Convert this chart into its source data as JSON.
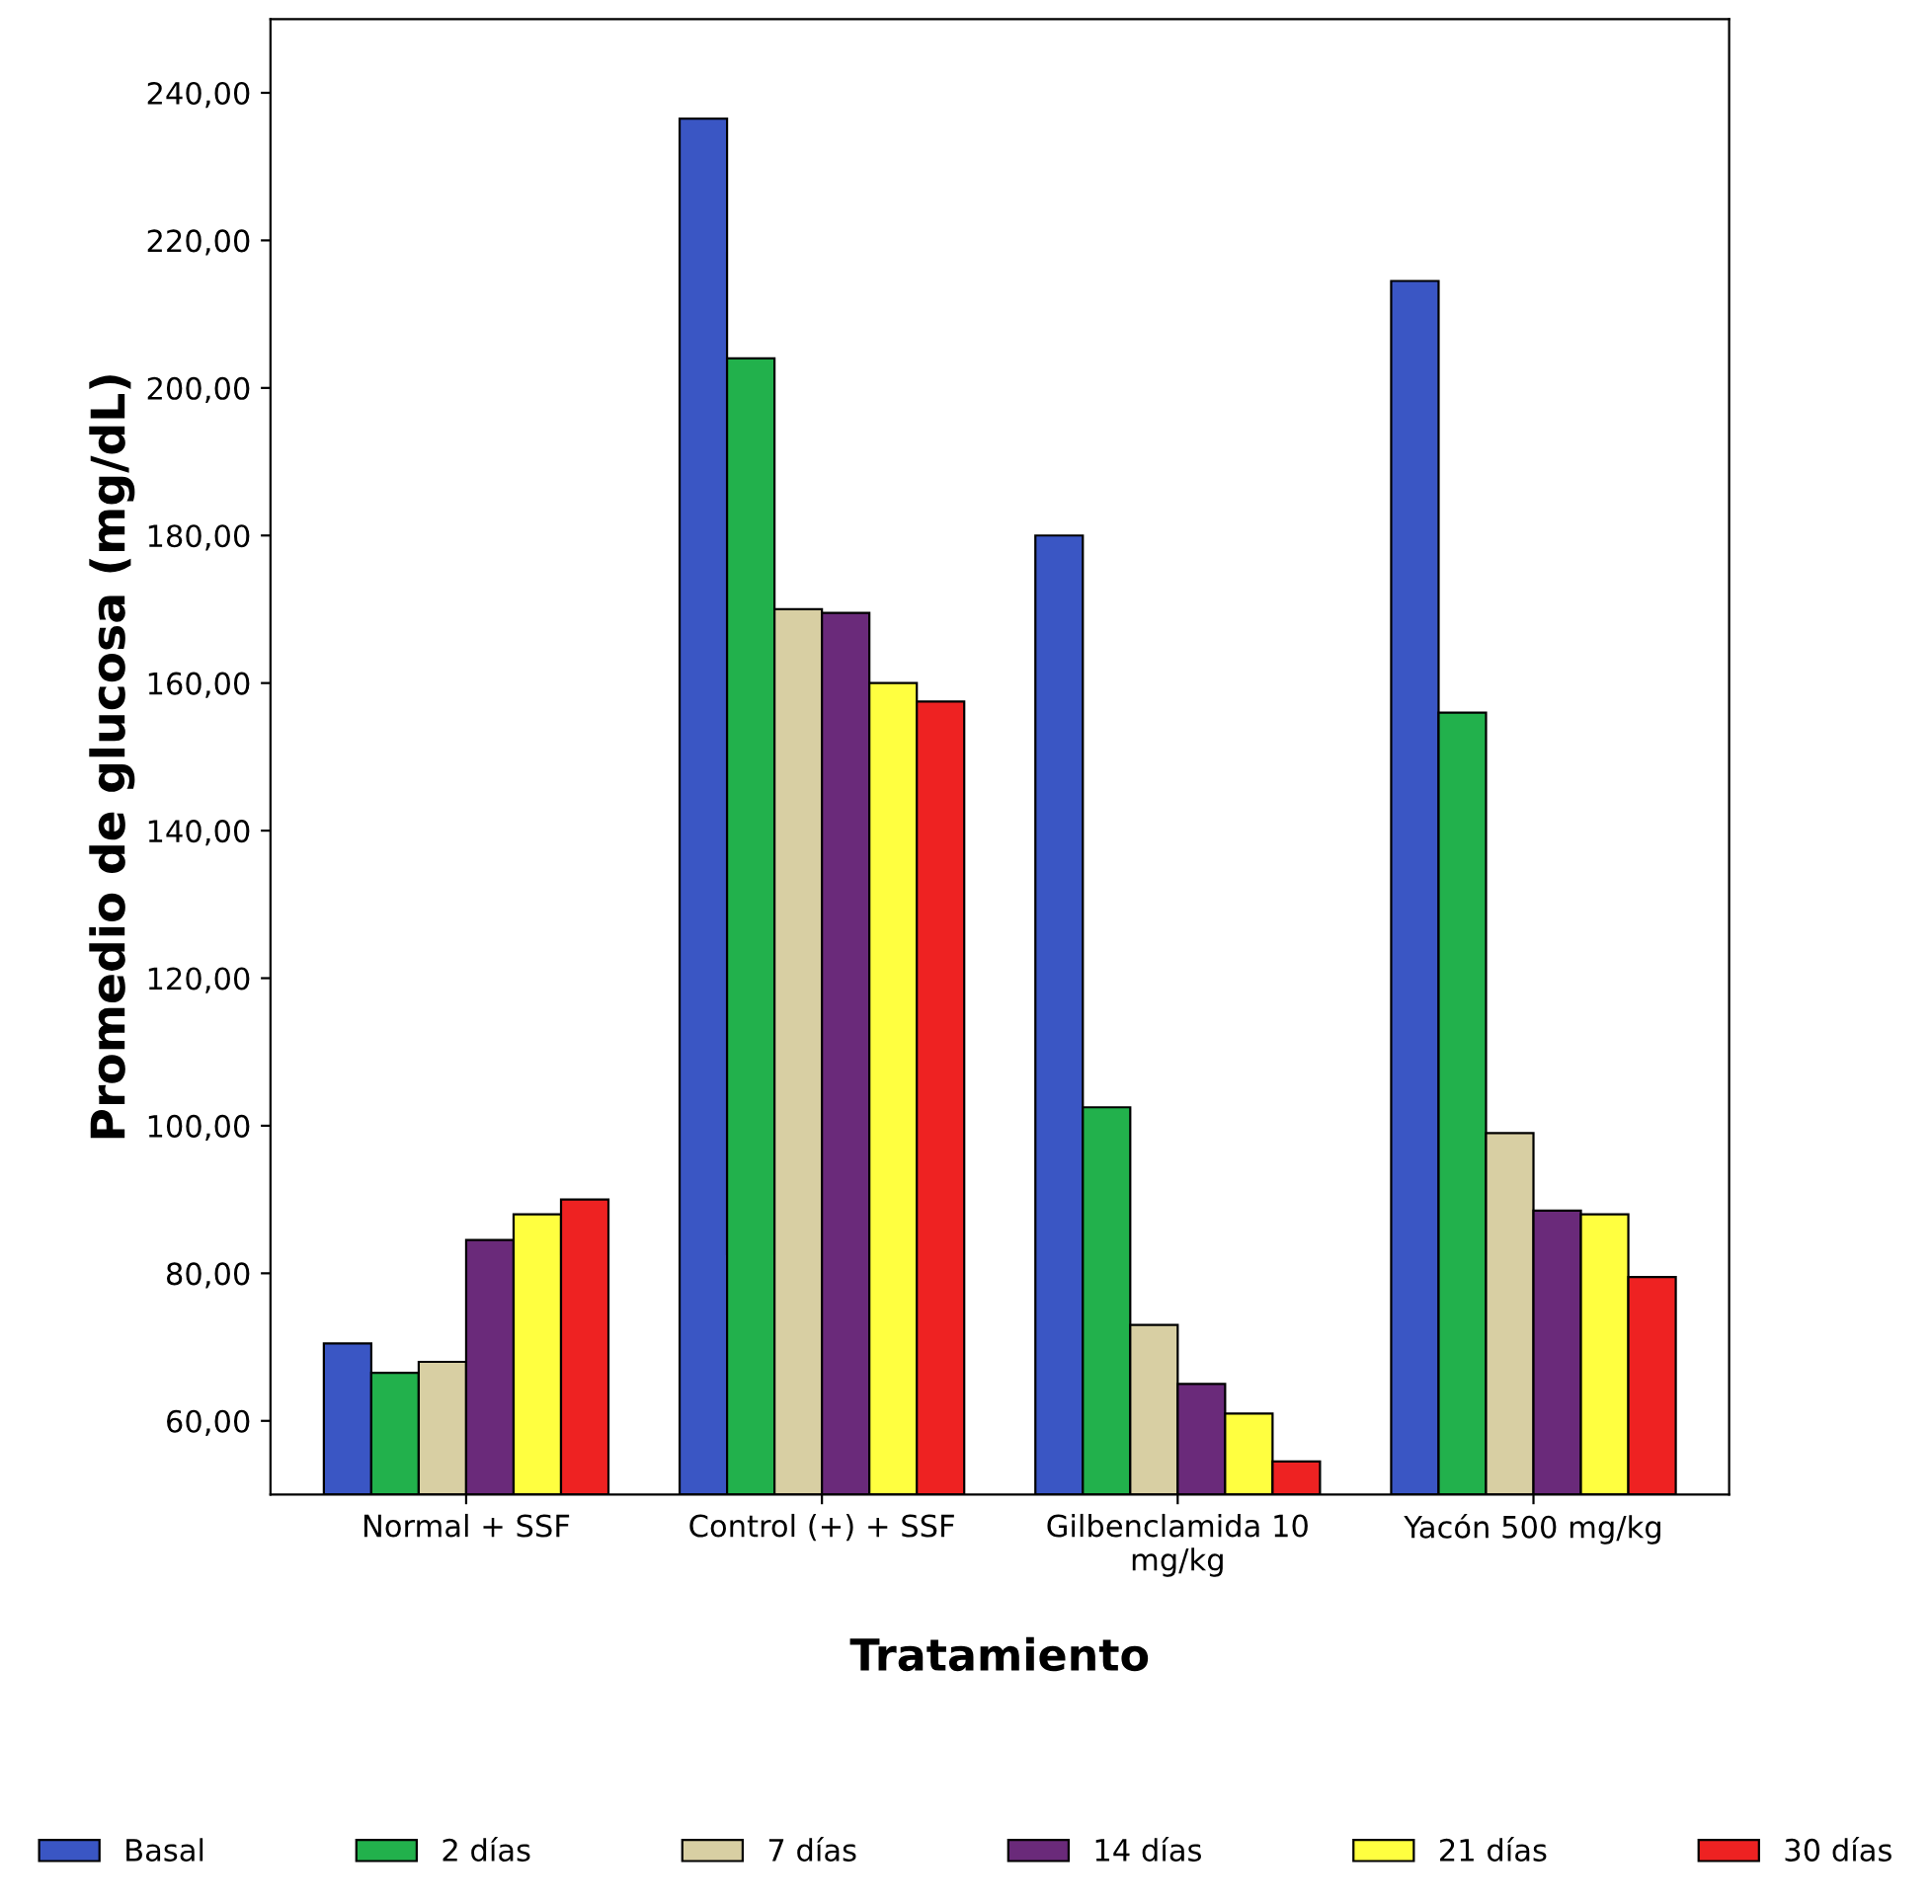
{
  "chart_data": {
    "type": "bar",
    "xlabel": "Tratamiento",
    "ylabel": "Promedio de glucosa (mg/dL)",
    "categories": [
      "Normal + SSF",
      "Control (+) + SSF",
      "Gilbenclamida 10\nmg/kg",
      "Yacón 500 mg/kg"
    ],
    "series": [
      {
        "name": "Basal",
        "color": "#3a56c4",
        "values": [
          70.5,
          236.5,
          180,
          214.5
        ]
      },
      {
        "name": "2 días",
        "color": "#22b14c",
        "values": [
          66.5,
          204,
          102.5,
          156
        ]
      },
      {
        "name": "7 días",
        "color": "#d8cfa3",
        "values": [
          68,
          170,
          73,
          99
        ]
      },
      {
        "name": "14 días",
        "color": "#6a2a7a",
        "values": [
          84.5,
          169.5,
          65,
          88.5
        ]
      },
      {
        "name": "21 días",
        "color": "#ffff40",
        "values": [
          88,
          160,
          61,
          88
        ]
      },
      {
        "name": "30 días",
        "color": "#ee2222",
        "values": [
          90,
          157.5,
          54.5,
          79.5
        ]
      }
    ],
    "ylim": [
      50,
      250
    ],
    "yticks": [
      {
        "value": 60,
        "label": "60,00"
      },
      {
        "value": 80,
        "label": "80,00"
      },
      {
        "value": 100,
        "label": "100,00"
      },
      {
        "value": 120,
        "label": "120,00"
      },
      {
        "value": 140,
        "label": "140,00"
      },
      {
        "value": 160,
        "label": "160,00"
      },
      {
        "value": 180,
        "label": "180,00"
      },
      {
        "value": 200,
        "label": "200,00"
      },
      {
        "value": 220,
        "label": "220,00"
      },
      {
        "value": 240,
        "label": "240,00"
      }
    ],
    "grid": false,
    "legend": "bottom"
  }
}
